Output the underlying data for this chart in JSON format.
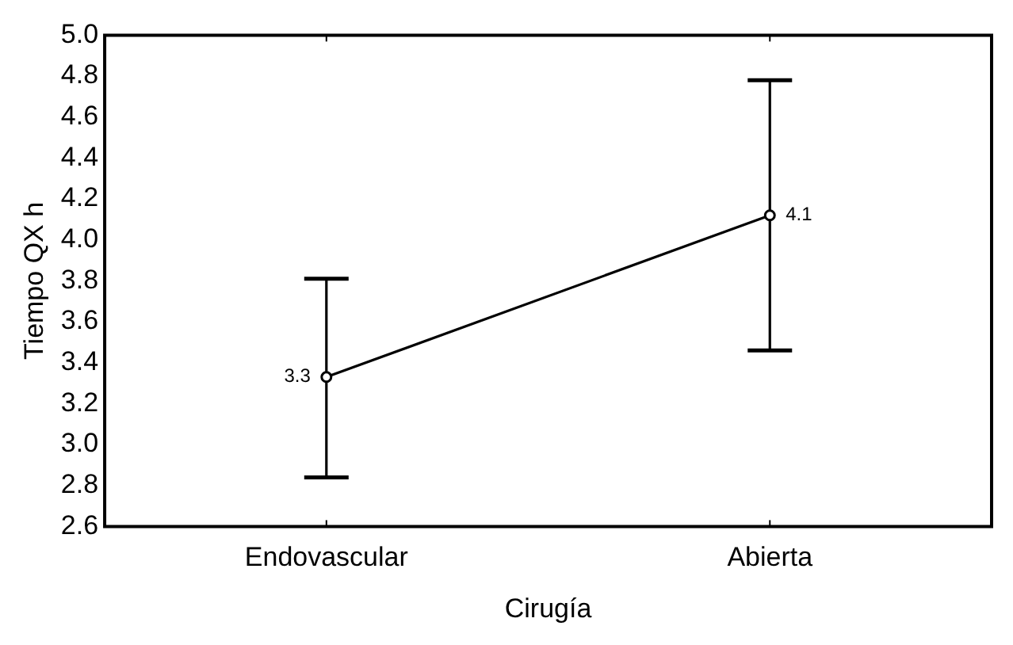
{
  "chart_data": {
    "type": "line",
    "xlabel": "Cirugía",
    "ylabel": "Tiempo QX h",
    "categories": [
      "Endovascular",
      "Abierta"
    ],
    "series": [
      {
        "color": "#000000",
        "values": [
          3.33,
          4.12
        ],
        "errors": [
          [
            2.84,
            3.81
          ],
          [
            3.46,
            4.78
          ]
        ],
        "value_labels": [
          "3.3",
          "4.1"
        ]
      }
    ],
    "ylim": [
      2.6,
      5.0
    ],
    "yticks": [
      2.6,
      2.8,
      {
        "value": 3,
        "label": "3.0"
      },
      3.2,
      3.4,
      3.6,
      3.8,
      {
        "value": 4,
        "label": "4.0"
      },
      4.2,
      4.4,
      4.6,
      4.8,
      {
        "value": 5,
        "label": "5.0"
      }
    ],
    "grid": false,
    "legend": false,
    "marker": "circle",
    "line_style": "solid"
  }
}
